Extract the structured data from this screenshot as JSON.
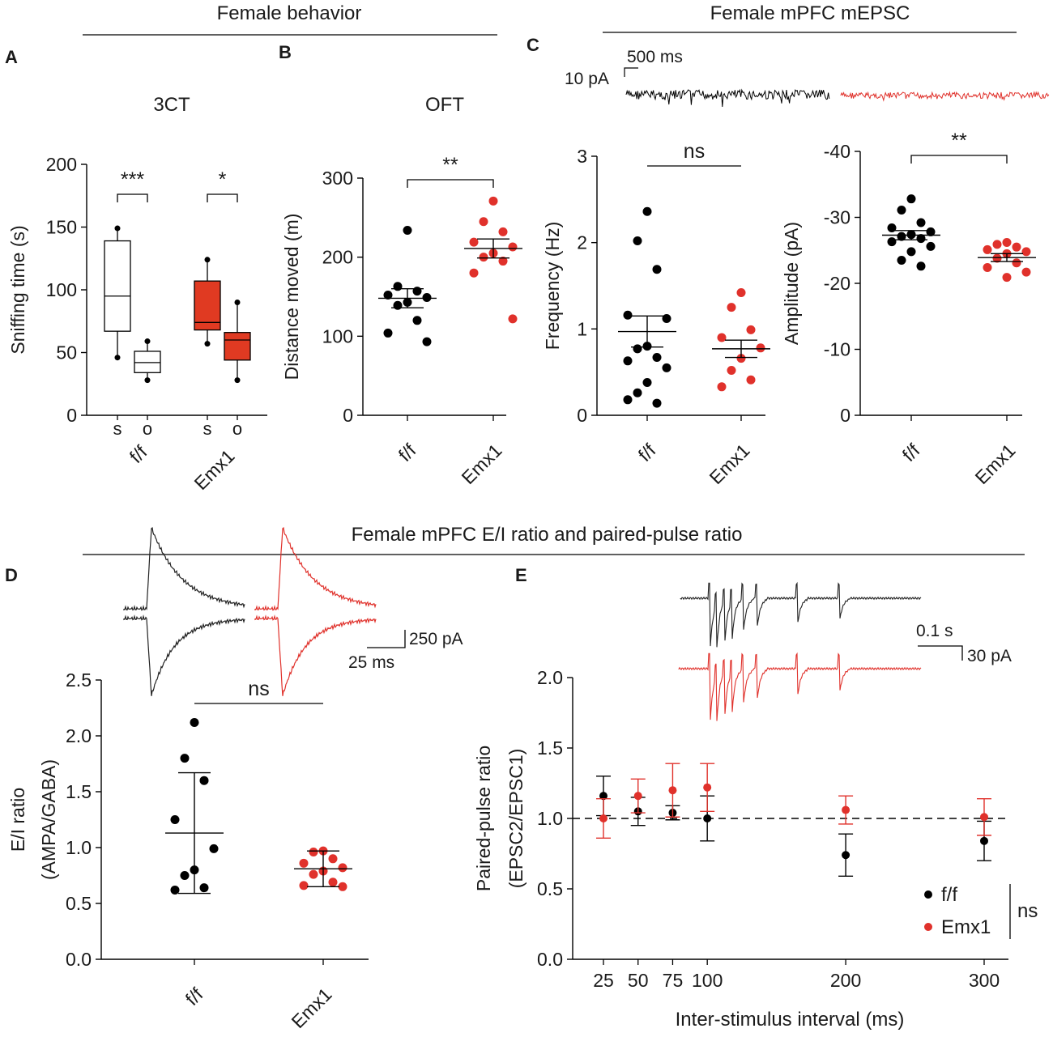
{
  "colors": {
    "black": "#000000",
    "red": "#e0312b",
    "redFill": "#e03a22",
    "dashed": "#000000"
  },
  "headers": {
    "behavior": "Female behavior",
    "mepsc": "Female mPFC mEPSC",
    "ei": "Female mPFC E/I ratio and paired-pulse ratio"
  },
  "panels": {
    "A": "A",
    "B": "B",
    "C": "C",
    "D": "D",
    "E": "E"
  },
  "scalebars": {
    "c_time": "500 ms",
    "c_amp": "10 pA",
    "d_amp": "250 pA",
    "d_time": "25 ms",
    "e_time": "0.1 s",
    "e_amp": "30 pA"
  },
  "chart_data": [
    {
      "id": "A",
      "type": "box",
      "title": "3CT",
      "ylabel": "Sniffing time (s)",
      "ylim": [
        0,
        200
      ],
      "yticks": [
        "0",
        "50",
        "100",
        "150",
        "200"
      ],
      "groups": [
        "f/f",
        "Emx1"
      ],
      "subgroups": [
        "s",
        "o"
      ],
      "boxes": [
        {
          "group": "f/f",
          "sub": "s",
          "min": 46,
          "q1": 67,
          "median": 95,
          "q3": 139,
          "max": 149,
          "color": "none"
        },
        {
          "group": "f/f",
          "sub": "o",
          "min": 28,
          "q1": 34,
          "median": 42,
          "q3": 51,
          "max": 59,
          "color": "none"
        },
        {
          "group": "Emx1",
          "sub": "s",
          "min": 57,
          "q1": 68,
          "median": 74,
          "q3": 107,
          "max": 124,
          "color": "red"
        },
        {
          "group": "Emx1",
          "sub": "o",
          "min": 28,
          "q1": 44,
          "median": 60,
          "q3": 66,
          "max": 90,
          "color": "red"
        }
      ],
      "significance": [
        {
          "label": "***",
          "pair": [
            "f/f s",
            "f/f o"
          ]
        },
        {
          "label": "*",
          "pair": [
            "Emx1 s",
            "Emx1 o"
          ]
        }
      ]
    },
    {
      "id": "B",
      "type": "scatter",
      "title": "OFT",
      "ylabel": "Distance moved (m)",
      "ylim": [
        0,
        300
      ],
      "yticks": [
        "0",
        "100",
        "200",
        "300"
      ],
      "categories": [
        "f/f",
        "Emx1"
      ],
      "series": [
        {
          "name": "f/f",
          "color": "black",
          "mean": 148,
          "sem": 12,
          "values": [
            234,
            163,
            157,
            152,
            149,
            143,
            139,
            120,
            104,
            93
          ]
        },
        {
          "name": "Emx1",
          "color": "red",
          "mean": 211,
          "sem": 12,
          "values": [
            271,
            245,
            232,
            219,
            213,
            205,
            200,
            195,
            180,
            122
          ]
        }
      ],
      "significance": {
        "label": "**"
      }
    },
    {
      "id": "C1",
      "type": "scatter",
      "ylabel": "Frequency (Hz)",
      "ylim": [
        0,
        3
      ],
      "yticks": [
        "0",
        "1",
        "2",
        "3"
      ],
      "categories": [
        "f/f",
        "Emx1"
      ],
      "series": [
        {
          "name": "f/f",
          "color": "black",
          "mean": 0.97,
          "sem": 0.18,
          "values": [
            2.36,
            2.02,
            1.69,
            1.16,
            1.12,
            0.8,
            0.77,
            0.67,
            0.63,
            0.55,
            0.38,
            0.26,
            0.14,
            0.18
          ]
        },
        {
          "name": "Emx1",
          "color": "red",
          "mean": 0.77,
          "sem": 0.1,
          "values": [
            1.42,
            1.25,
            0.99,
            0.9,
            0.78,
            0.66,
            0.52,
            0.41,
            0.33
          ]
        }
      ],
      "significance": {
        "label": "ns"
      }
    },
    {
      "id": "C2",
      "type": "scatter",
      "ylabel": "Amplitude (pA)",
      "ylim": [
        0,
        -40
      ],
      "yticks": [
        "0",
        "-10",
        "-20",
        "-30",
        "-40"
      ],
      "categories": [
        "f/f",
        "Emx1"
      ],
      "series": [
        {
          "name": "f/f",
          "color": "black",
          "mean": -27.3,
          "sem": 0.7,
          "values": [
            -32.8,
            -31.1,
            -29.2,
            -28.4,
            -27.8,
            -27.4,
            -27.1,
            -26.8,
            -26.3,
            -25.6,
            -24.8,
            -23.5,
            -22.6
          ]
        },
        {
          "name": "Emx1",
          "color": "red",
          "mean": -23.9,
          "sem": 0.6,
          "values": [
            -26.2,
            -25.9,
            -25.5,
            -25.1,
            -24.8,
            -24.5,
            -23.8,
            -23.1,
            -22.4,
            -21.7,
            -20.9
          ]
        }
      ],
      "significance": {
        "label": "**"
      }
    },
    {
      "id": "D",
      "type": "scatter",
      "ylabel": "E/I ratio",
      "ylabel2": "(AMPA/GABA)",
      "ylim": [
        0,
        2.5
      ],
      "yticks": [
        "0.0",
        "0.5",
        "1.0",
        "1.5",
        "2.0",
        "2.5"
      ],
      "categories": [
        "f/f",
        "Emx1"
      ],
      "series": [
        {
          "name": "f/f",
          "color": "black",
          "mean": 1.13,
          "sd": 0.54,
          "values": [
            2.12,
            1.8,
            1.6,
            1.25,
            0.99,
            0.8,
            0.75,
            0.64,
            0.62
          ]
        },
        {
          "name": "Emx1",
          "color": "red",
          "mean": 0.81,
          "sd": 0.16,
          "values": [
            0.97,
            0.96,
            0.9,
            0.86,
            0.82,
            0.79,
            0.76,
            0.69,
            0.66,
            0.65
          ]
        }
      ],
      "significance": {
        "label": "ns"
      }
    },
    {
      "id": "E",
      "type": "line",
      "xlabel": "Inter-stimulus interval (ms)",
      "ylabel": "Paired-pulse ratio",
      "ylabel2": "(EPSC2/EPSC1)",
      "ylim": [
        0,
        2
      ],
      "yticks": [
        "0.0",
        "0.5",
        "1.0",
        "1.5",
        "2.0"
      ],
      "x": [
        25,
        50,
        75,
        100,
        200,
        300
      ],
      "xticks": [
        "25",
        "50",
        "75",
        "100",
        "200",
        "300"
      ],
      "reference_line": 1.0,
      "series": [
        {
          "name": "f/f",
          "color": "black",
          "values": [
            1.16,
            1.05,
            1.04,
            1.0,
            0.74,
            0.84
          ],
          "err": [
            0.14,
            0.1,
            0.05,
            0.16,
            0.15,
            0.14
          ]
        },
        {
          "name": "Emx1",
          "color": "red",
          "values": [
            1.0,
            1.16,
            1.2,
            1.22,
            1.06,
            1.01
          ],
          "err": [
            0.14,
            0.12,
            0.19,
            0.17,
            0.1,
            0.13
          ]
        }
      ],
      "legend": [
        "f/f",
        "Emx1"
      ],
      "legend_note": "ns"
    }
  ]
}
